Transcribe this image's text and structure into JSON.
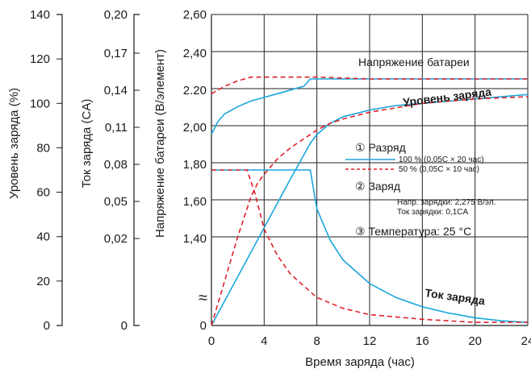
{
  "chart_data": {
    "type": "line",
    "xlabel": "Время заряда (час)",
    "x_ticks": [
      0,
      4,
      8,
      12,
      16,
      20,
      24
    ],
    "xlim": [
      0,
      24
    ],
    "axes": {
      "level": {
        "label": "Уровень заряда (%)",
        "ticks": [
          "0",
          "20",
          "40",
          "60",
          "80",
          "100",
          "120",
          "140"
        ]
      },
      "current": {
        "label": "Ток заряда (CA)",
        "ticks": [
          "0",
          "0,02",
          "0,05",
          "0,08",
          "0,11",
          "0,14",
          "0,17",
          "0,20"
        ]
      },
      "voltage": {
        "label": "Напряжение батареи (В/элемент)",
        "ticks": [
          "0",
          "1,40",
          "1,60",
          "1,80",
          "2,00",
          "2.20",
          "2,40",
          "2,60"
        ],
        "ylim": [
          1.2,
          2.6
        ]
      }
    },
    "break_symbol": "≈",
    "series": [
      {
        "kind": "voltage",
        "style": "solid",
        "color": "#1aa6dc",
        "x": [
          0,
          0.5,
          1,
          2,
          3,
          4,
          5,
          6,
          7,
          7.5,
          8,
          12,
          16,
          20,
          24
        ],
        "y": [
          1.95,
          2.02,
          2.06,
          2.1,
          2.13,
          2.15,
          2.17,
          2.19,
          2.21,
          2.25,
          2.25,
          2.25,
          2.25,
          2.25,
          2.25
        ]
      },
      {
        "kind": "voltage",
        "style": "dashed",
        "color": "#e0202a",
        "x": [
          0,
          0.5,
          1,
          2,
          3,
          4,
          6,
          8,
          12,
          16,
          20,
          24
        ],
        "y": [
          2.17,
          2.19,
          2.21,
          2.24,
          2.26,
          2.26,
          2.26,
          2.26,
          2.25,
          2.25,
          2.25,
          2.25
        ]
      },
      {
        "kind": "level",
        "style": "solid",
        "color": "#1aa6dc",
        "x": [
          0,
          2,
          4,
          6,
          7.5,
          8,
          9,
          10,
          12,
          14,
          16,
          18,
          20,
          22,
          24
        ],
        "y": [
          0,
          22,
          44,
          66,
          82,
          86,
          91,
          94,
          97,
          99,
          100,
          101,
          102,
          103,
          104
        ]
      },
      {
        "kind": "level",
        "style": "dashed",
        "color": "#e0202a",
        "x": [
          0,
          1,
          2,
          3,
          3.5,
          4,
          5,
          6,
          7,
          8,
          9,
          10,
          12,
          16,
          20,
          24
        ],
        "y": [
          0,
          20,
          40,
          58,
          64,
          68,
          75,
          80,
          84,
          88,
          91,
          93,
          96,
          100,
          102,
          103
        ]
      },
      {
        "kind": "current",
        "style": "solid",
        "color": "#1aa6dc",
        "x": [
          0,
          7.5,
          8,
          9,
          10,
          12,
          14,
          16,
          18,
          20,
          22,
          24
        ],
        "y": [
          0.1,
          0.1,
          0.075,
          0.055,
          0.042,
          0.027,
          0.018,
          0.012,
          0.008,
          0.005,
          0.003,
          0.002
        ]
      },
      {
        "kind": "current",
        "style": "dashed",
        "color": "#e0202a",
        "x": [
          0,
          2.7,
          3.3,
          4,
          5,
          6,
          8,
          10,
          12,
          16,
          20,
          24
        ],
        "y": [
          0.1,
          0.1,
          0.085,
          0.062,
          0.045,
          0.033,
          0.018,
          0.011,
          0.007,
          0.004,
          0.002,
          0.002
        ]
      }
    ],
    "curve_labels": {
      "voltage": "Напряжение батареи",
      "level": "Уровень заряда",
      "current": "Ток заряда"
    },
    "legend": {
      "discharge_title": "① Разряд",
      "discharge_100": "100 % (0,05C × 20 час)",
      "discharge_50": "50 % (0,05C × 10 час)",
      "charge_title": "② Заряд",
      "charge_voltage": "Напр. зарядки: 2,275 В/эл.",
      "charge_current": "Ток зарядки: 0,1CA",
      "temperature": "③ Температура: 25 °C"
    }
  }
}
